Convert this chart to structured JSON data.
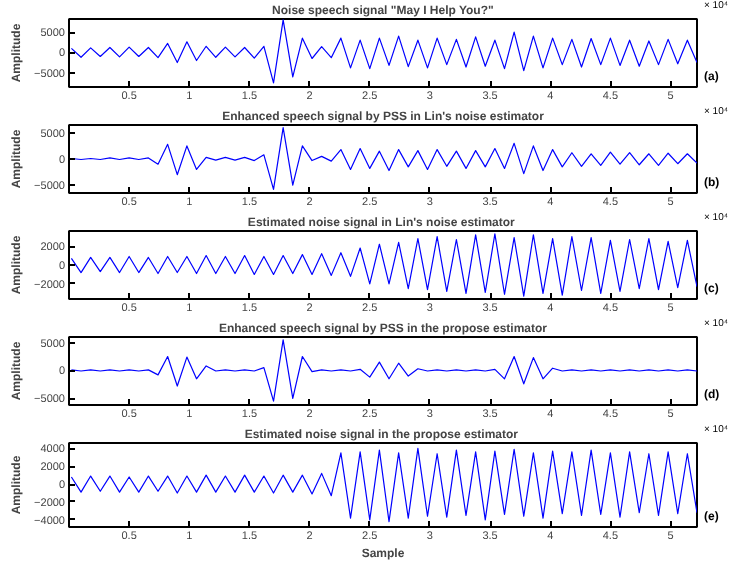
{
  "chart_data": [
    {
      "type": "line",
      "title": "Noise speech signal \"May I Help You?\"",
      "ylabel": "Amplitude",
      "annotations": [
        "(a)",
        "× 10⁴"
      ],
      "xlim": [
        0,
        5.22
      ],
      "xticks": [
        0.5,
        1,
        1.5,
        2,
        2.5,
        3,
        3.5,
        4,
        4.5,
        5
      ],
      "ylim": [
        -8500,
        8200
      ],
      "yticks": [
        -5000,
        0,
        5000
      ],
      "grid": false,
      "x": [
        0.02,
        0.1,
        0.18,
        0.26,
        0.34,
        0.42,
        0.5,
        0.58,
        0.66,
        0.74,
        0.82,
        0.9,
        0.98,
        1.06,
        1.14,
        1.22,
        1.3,
        1.38,
        1.46,
        1.54,
        1.62,
        1.7,
        1.78,
        1.86,
        1.94,
        2.02,
        2.1,
        2.18,
        2.26,
        2.34,
        2.42,
        2.5,
        2.58,
        2.66,
        2.74,
        2.82,
        2.9,
        2.98,
        3.06,
        3.14,
        3.22,
        3.3,
        3.38,
        3.46,
        3.54,
        3.62,
        3.7,
        3.78,
        3.86,
        3.94,
        4.02,
        4.1,
        4.18,
        4.26,
        4.34,
        4.42,
        4.5,
        4.58,
        4.66,
        4.74,
        4.82,
        4.9,
        4.98,
        5.06,
        5.14,
        5.22
      ],
      "series": [
        {
          "color": "#0000ff",
          "values": [
            1000,
            -1200,
            1100,
            -1000,
            1200,
            -1100,
            1300,
            -1000,
            1200,
            -1300,
            2200,
            -2500,
            2600,
            -2000,
            1500,
            -1200,
            1300,
            -1100,
            1200,
            -1400,
            1500,
            -7500,
            8000,
            -6000,
            3500,
            -1500,
            1400,
            -1300,
            3500,
            -3800,
            3000,
            -4000,
            3500,
            -3200,
            4000,
            -3500,
            3000,
            -3800,
            3500,
            -3000,
            3200,
            -3600,
            3800,
            -3400,
            3000,
            -4000,
            5000,
            -4500,
            4000,
            -3800,
            3500,
            -3000,
            3200,
            -3600,
            3400,
            -3000,
            3500,
            -3200,
            3000,
            -3400,
            2800,
            -3000,
            3200,
            -2800,
            3000,
            -2500
          ]
        }
      ]
    },
    {
      "type": "line",
      "title": "Enhanced speech signal by PSS in Lin's noise estimator",
      "ylabel": "Amplitude",
      "annotations": [
        "(b)",
        "× 10⁴"
      ],
      "xlim": [
        0,
        5.22
      ],
      "xticks": [
        0.5,
        1,
        1.5,
        2,
        2.5,
        3,
        3.5,
        4,
        4.5,
        5
      ],
      "ylim": [
        -6500,
        6500
      ],
      "yticks": [
        -5000,
        0,
        5000
      ],
      "grid": false,
      "x": [
        0.02,
        0.1,
        0.18,
        0.26,
        0.34,
        0.42,
        0.5,
        0.58,
        0.66,
        0.74,
        0.82,
        0.9,
        0.98,
        1.06,
        1.14,
        1.22,
        1.3,
        1.38,
        1.46,
        1.54,
        1.62,
        1.7,
        1.78,
        1.86,
        1.94,
        2.02,
        2.1,
        2.18,
        2.26,
        2.34,
        2.42,
        2.5,
        2.58,
        2.66,
        2.74,
        2.82,
        2.9,
        2.98,
        3.06,
        3.14,
        3.22,
        3.3,
        3.38,
        3.46,
        3.54,
        3.62,
        3.7,
        3.78,
        3.86,
        3.94,
        4.02,
        4.1,
        4.18,
        4.26,
        4.34,
        4.42,
        4.5,
        4.58,
        4.66,
        4.74,
        4.82,
        4.9,
        4.98,
        5.06,
        5.14,
        5.22
      ],
      "series": [
        {
          "color": "#0000ff",
          "values": [
            100,
            -100,
            100,
            -100,
            200,
            -100,
            200,
            -100,
            200,
            -1000,
            2800,
            -3000,
            2500,
            -2000,
            300,
            -200,
            300,
            -200,
            300,
            -300,
            800,
            -5800,
            6000,
            -5000,
            2500,
            -300,
            500,
            -400,
            1800,
            -2000,
            2000,
            -1800,
            1500,
            -2200,
            1800,
            -1500,
            1600,
            -2000,
            1800,
            -1400,
            1500,
            -1800,
            1600,
            -1500,
            2000,
            -1800,
            3000,
            -2800,
            2500,
            -2200,
            1800,
            -1500,
            1200,
            -1400,
            1000,
            -1200,
            1300,
            -1000,
            1200,
            -1100,
            1000,
            -1200,
            1100,
            -900,
            1000,
            -800
          ]
        }
      ]
    },
    {
      "type": "line",
      "title": "Estimated noise signal  in Lin's noise estimator",
      "ylabel": "Amplitude",
      "annotations": [
        "(c)",
        "× 10⁴"
      ],
      "xlim": [
        0,
        5.22
      ],
      "xticks": [
        0.5,
        1,
        1.5,
        2,
        2.5,
        3,
        3.5,
        4,
        4.5,
        5
      ],
      "ylim": [
        -3600,
        3600
      ],
      "yticks": [
        -2000,
        0,
        2000
      ],
      "grid": false,
      "x": [
        0.02,
        0.1,
        0.18,
        0.26,
        0.34,
        0.42,
        0.5,
        0.58,
        0.66,
        0.74,
        0.82,
        0.9,
        0.98,
        1.06,
        1.14,
        1.22,
        1.3,
        1.38,
        1.46,
        1.54,
        1.62,
        1.7,
        1.78,
        1.86,
        1.94,
        2.02,
        2.1,
        2.18,
        2.26,
        2.34,
        2.42,
        2.5,
        2.58,
        2.66,
        2.74,
        2.82,
        2.9,
        2.98,
        3.06,
        3.14,
        3.22,
        3.3,
        3.38,
        3.46,
        3.54,
        3.62,
        3.7,
        3.78,
        3.86,
        3.94,
        4.02,
        4.1,
        4.18,
        4.26,
        4.34,
        4.42,
        4.5,
        4.58,
        4.66,
        4.74,
        4.82,
        4.9,
        4.98,
        5.06,
        5.14,
        5.22
      ],
      "series": [
        {
          "color": "#0000ff",
          "values": [
            700,
            -800,
            800,
            -700,
            800,
            -800,
            900,
            -800,
            800,
            -900,
            900,
            -800,
            900,
            -900,
            1000,
            -900,
            900,
            -900,
            1000,
            -1000,
            900,
            -1000,
            1000,
            -900,
            1100,
            -1000,
            1200,
            -1100,
            1300,
            -1200,
            1800,
            -2000,
            2200,
            -2000,
            2400,
            -2500,
            2800,
            -2600,
            3000,
            -2800,
            2700,
            -3000,
            3200,
            -2900,
            3300,
            -3100,
            2900,
            -3300,
            3200,
            -3000,
            2800,
            -3200,
            3000,
            -2700,
            2900,
            -3000,
            2600,
            -2800,
            2700,
            -2500,
            2800,
            -2600,
            2500,
            -2400,
            2600,
            -2300
          ]
        }
      ]
    },
    {
      "type": "line",
      "title": "Enhanced speech signal by PSS in the propose estimator",
      "ylabel": "Amplitude",
      "annotations": [
        "(d)",
        "× 10⁴"
      ],
      "xlim": [
        0,
        5.22
      ],
      "xticks": [
        0.5,
        1,
        1.5,
        2,
        2.5,
        3,
        3.5,
        4,
        4.5,
        5
      ],
      "ylim": [
        -6200,
        6000
      ],
      "yticks": [
        -5000,
        0,
        5000
      ],
      "grid": false,
      "x": [
        0.02,
        0.1,
        0.18,
        0.26,
        0.34,
        0.42,
        0.5,
        0.58,
        0.66,
        0.74,
        0.82,
        0.9,
        0.98,
        1.06,
        1.14,
        1.22,
        1.3,
        1.38,
        1.46,
        1.54,
        1.62,
        1.7,
        1.78,
        1.86,
        1.94,
        2.02,
        2.1,
        2.18,
        2.26,
        2.34,
        2.42,
        2.5,
        2.58,
        2.66,
        2.74,
        2.82,
        2.9,
        2.98,
        3.06,
        3.14,
        3.22,
        3.3,
        3.38,
        3.46,
        3.54,
        3.62,
        3.7,
        3.78,
        3.86,
        3.94,
        4.02,
        4.1,
        4.18,
        4.26,
        4.34,
        4.42,
        4.5,
        4.58,
        4.66,
        4.74,
        4.82,
        4.9,
        4.98,
        5.06,
        5.14,
        5.22
      ],
      "series": [
        {
          "color": "#0000ff",
          "values": [
            100,
            -100,
            100,
            -100,
            100,
            -100,
            100,
            -100,
            100,
            -800,
            2500,
            -2800,
            2400,
            -1500,
            800,
            -100,
            100,
            -100,
            100,
            -100,
            500,
            -5500,
            5500,
            -5000,
            2500,
            -200,
            100,
            -100,
            100,
            -100,
            200,
            -1200,
            1500,
            -1500,
            1300,
            -1000,
            300,
            -100,
            100,
            -100,
            100,
            -100,
            100,
            -100,
            200,
            -1500,
            2500,
            -2400,
            2300,
            -1500,
            400,
            -100,
            100,
            -100,
            100,
            -100,
            100,
            -100,
            100,
            -100,
            100,
            -100,
            100,
            -100,
            100,
            -100
          ]
        }
      ]
    },
    {
      "type": "line",
      "title": "Estimated noise signal  in the propose estimator",
      "xlabel": "Sample",
      "ylabel": "Amplitude",
      "annotations": [
        "(e)",
        "× 10⁴"
      ],
      "xlim": [
        0,
        5.22
      ],
      "xticks": [
        0.5,
        1,
        1.5,
        2,
        2.5,
        3,
        3.5,
        4,
        4.5,
        5
      ],
      "ylim": [
        -4800,
        4600
      ],
      "yticks": [
        -4000,
        -2000,
        0,
        2000,
        4000
      ],
      "grid": false,
      "x": [
        0.02,
        0.1,
        0.18,
        0.26,
        0.34,
        0.42,
        0.5,
        0.58,
        0.66,
        0.74,
        0.82,
        0.9,
        0.98,
        1.06,
        1.14,
        1.22,
        1.3,
        1.38,
        1.46,
        1.54,
        1.62,
        1.7,
        1.78,
        1.86,
        1.94,
        2.02,
        2.1,
        2.18,
        2.26,
        2.34,
        2.42,
        2.5,
        2.58,
        2.66,
        2.74,
        2.82,
        2.9,
        2.98,
        3.06,
        3.14,
        3.22,
        3.3,
        3.38,
        3.46,
        3.54,
        3.62,
        3.7,
        3.78,
        3.86,
        3.94,
        4.02,
        4.1,
        4.18,
        4.26,
        4.34,
        4.42,
        4.5,
        4.58,
        4.66,
        4.74,
        4.82,
        4.9,
        4.98,
        5.06,
        5.14,
        5.22
      ],
      "series": [
        {
          "color": "#0000ff",
          "values": [
            800,
            -900,
            900,
            -800,
            900,
            -900,
            800,
            -900,
            900,
            -800,
            900,
            -1000,
            900,
            -900,
            1000,
            -900,
            900,
            -900,
            1000,
            -900,
            900,
            -1000,
            1000,
            -900,
            1000,
            -1100,
            1200,
            -1300,
            3500,
            -3800,
            3600,
            -4000,
            3800,
            -4200,
            3500,
            -3800,
            4000,
            -3600,
            3400,
            -3700,
            3800,
            -3500,
            3600,
            -4000,
            3700,
            -3400,
            3900,
            -3600,
            3500,
            -3800,
            3700,
            -3300,
            3600,
            -3500,
            3800,
            -3400,
            3500,
            -3700,
            3600,
            -3200,
            3400,
            -3500,
            3600,
            -3300,
            3400,
            -3200
          ]
        }
      ]
    }
  ]
}
